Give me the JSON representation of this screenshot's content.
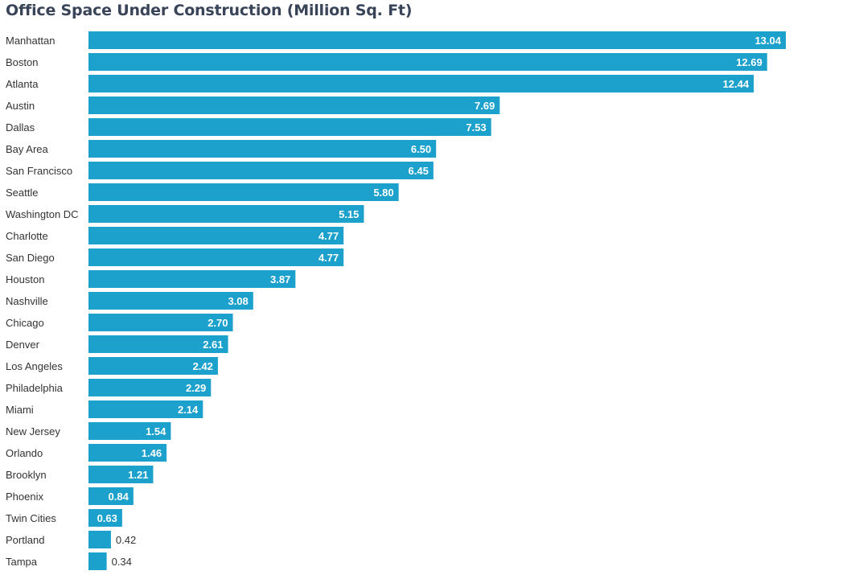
{
  "chart_data": {
    "type": "bar",
    "orientation": "horizontal",
    "title": "Office Space Under Construction (Million Sq. Ft)",
    "categories": [
      "Manhattan",
      "Boston",
      "Atlanta",
      "Austin",
      "Dallas",
      "Bay Area",
      "San Francisco",
      "Seattle",
      "Washington DC",
      "Charlotte",
      "San Diego",
      "Houston",
      "Nashville",
      "Chicago",
      "Denver",
      "Los Angeles",
      "Philadelphia",
      "Miami",
      "New Jersey",
      "Orlando",
      "Brooklyn",
      "Phoenix",
      "Twin Cities",
      "Portland",
      "Tampa"
    ],
    "values": [
      13.04,
      12.69,
      12.44,
      7.69,
      7.53,
      6.5,
      6.45,
      5.8,
      5.15,
      4.77,
      4.77,
      3.87,
      3.08,
      2.7,
      2.61,
      2.42,
      2.29,
      2.14,
      1.54,
      1.46,
      1.21,
      0.84,
      0.63,
      0.42,
      0.34
    ],
    "xlim": [
      0,
      13.04
    ],
    "grid": false,
    "legend": "none",
    "bar_color": "#1ba1cc",
    "title_color": "#3a4459"
  }
}
